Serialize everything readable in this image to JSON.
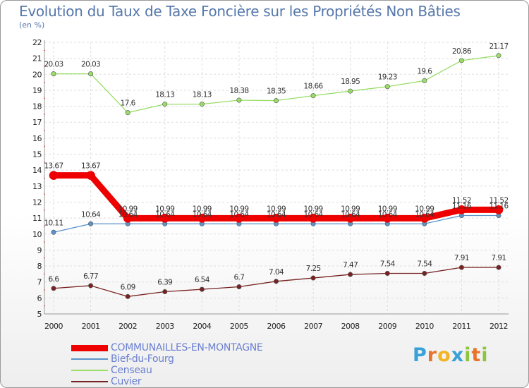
{
  "chart_data": {
    "type": "line",
    "title": "Evolution du Taux de Taxe Foncière sur les Propriétés Non Bâties",
    "subtitle": "(en %)",
    "xlabel": "",
    "ylabel": "",
    "categories": [
      "2000",
      "2001",
      "2002",
      "2003",
      "2004",
      "2005",
      "2006",
      "2007",
      "2008",
      "2009",
      "2010",
      "2011",
      "2012"
    ],
    "ylim": [
      5,
      22
    ],
    "yticks": [
      5,
      6,
      7,
      8,
      9,
      10,
      11,
      12,
      13,
      14,
      15,
      16,
      17,
      18,
      19,
      20,
      21,
      22
    ],
    "grid": true,
    "legend_position": "bottom-left",
    "series": [
      {
        "name": "COMMUNAILLES-EN-MONTAGNE",
        "color": "#ee0000",
        "values": [
          13.67,
          13.67,
          10.99,
          10.99,
          10.99,
          10.99,
          10.99,
          10.99,
          10.99,
          10.99,
          10.99,
          11.52,
          11.52
        ],
        "labels": [
          "13.67",
          "13.67",
          "10.99",
          "10.99",
          "10.99",
          "10.99",
          "10.99",
          "10.99",
          "10.99",
          "10.99",
          "10.99",
          "11.52",
          "11.52"
        ]
      },
      {
        "name": "Bief-du-Fourg",
        "color": "#5b93c9",
        "values": [
          10.11,
          10.64,
          10.64,
          10.64,
          10.64,
          10.64,
          10.64,
          10.64,
          10.64,
          10.64,
          10.64,
          11.16,
          11.16
        ],
        "labels": [
          "10.11",
          "10.64",
          "10.64",
          "10.64",
          "10.64",
          "10.64",
          "10.64",
          "10.64",
          "10.64",
          "10.64",
          "10.64",
          "11.16",
          "11.16"
        ]
      },
      {
        "name": "Censeau",
        "color": "#99dd66",
        "values": [
          20.03,
          20.03,
          17.6,
          18.13,
          18.13,
          18.38,
          18.35,
          18.66,
          18.95,
          19.23,
          19.6,
          20.86,
          21.17
        ],
        "labels": [
          "20.03",
          "20.03",
          "17.6",
          "18.13",
          "18.13",
          "18.38",
          "18.35",
          "18.66",
          "18.95",
          "19.23",
          "19.6",
          "20.86",
          "21.17"
        ]
      },
      {
        "name": "Cuvier",
        "color": "#772222",
        "values": [
          6.6,
          6.77,
          6.09,
          6.39,
          6.54,
          6.7,
          7.04,
          7.25,
          7.47,
          7.54,
          7.54,
          7.91,
          7.91
        ],
        "labels": [
          "6.6",
          "6.77",
          "6.09",
          "6.39",
          "6.54",
          "6.7",
          "7.04",
          "7.25",
          "7.47",
          "7.54",
          "7.54",
          "7.91",
          "7.91"
        ]
      }
    ]
  },
  "logo": {
    "letters": [
      "P",
      "r",
      "o",
      "x",
      "i",
      "t",
      "i"
    ],
    "colors": [
      "#3aa0d8",
      "#e8732a",
      "#f2b324",
      "#3aa0d8",
      "#8cc63e",
      "#e8732a",
      "#8cc63e"
    ]
  }
}
